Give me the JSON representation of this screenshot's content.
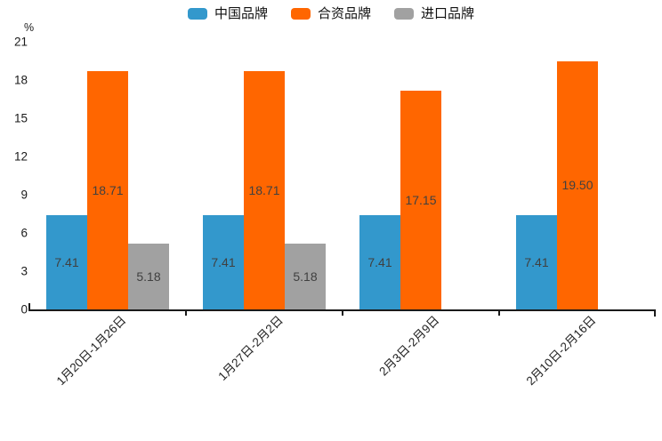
{
  "y_axis": {
    "unit": "%"
  },
  "colors": {
    "axis": "#1a1a1a",
    "bar_value_label": "#404040",
    "tick_label": "#1a1a1a",
    "series_blue": "#3398CC",
    "series_orange": "#FF6600",
    "series_gray": "#A1A1A1"
  },
  "chart_data": {
    "type": "bar",
    "title": "",
    "xlabel": "",
    "ylabel": "%",
    "ylim": [
      0,
      21
    ],
    "yticks": [
      0,
      3,
      6,
      9,
      12,
      15,
      18,
      21
    ],
    "grid": false,
    "legend_position": "top-center",
    "value_labels": "inside-center, two decimals",
    "x_tick_label_rotation_deg": 45,
    "categories": [
      "1月20日-1月26日",
      "1月27日-2月2日",
      "2月3日-2月9日",
      "2月10日-2月16日"
    ],
    "series": [
      {
        "name": "中国品牌",
        "color": "#3398CC",
        "values": [
          7.41,
          7.41,
          7.41,
          7.41
        ]
      },
      {
        "name": "合资品牌",
        "color": "#FF6600",
        "values": [
          18.71,
          18.71,
          17.15,
          19.5
        ]
      },
      {
        "name": "进口品牌",
        "color": "#A1A1A1",
        "values": [
          5.18,
          5.18,
          null,
          null
        ]
      }
    ]
  }
}
